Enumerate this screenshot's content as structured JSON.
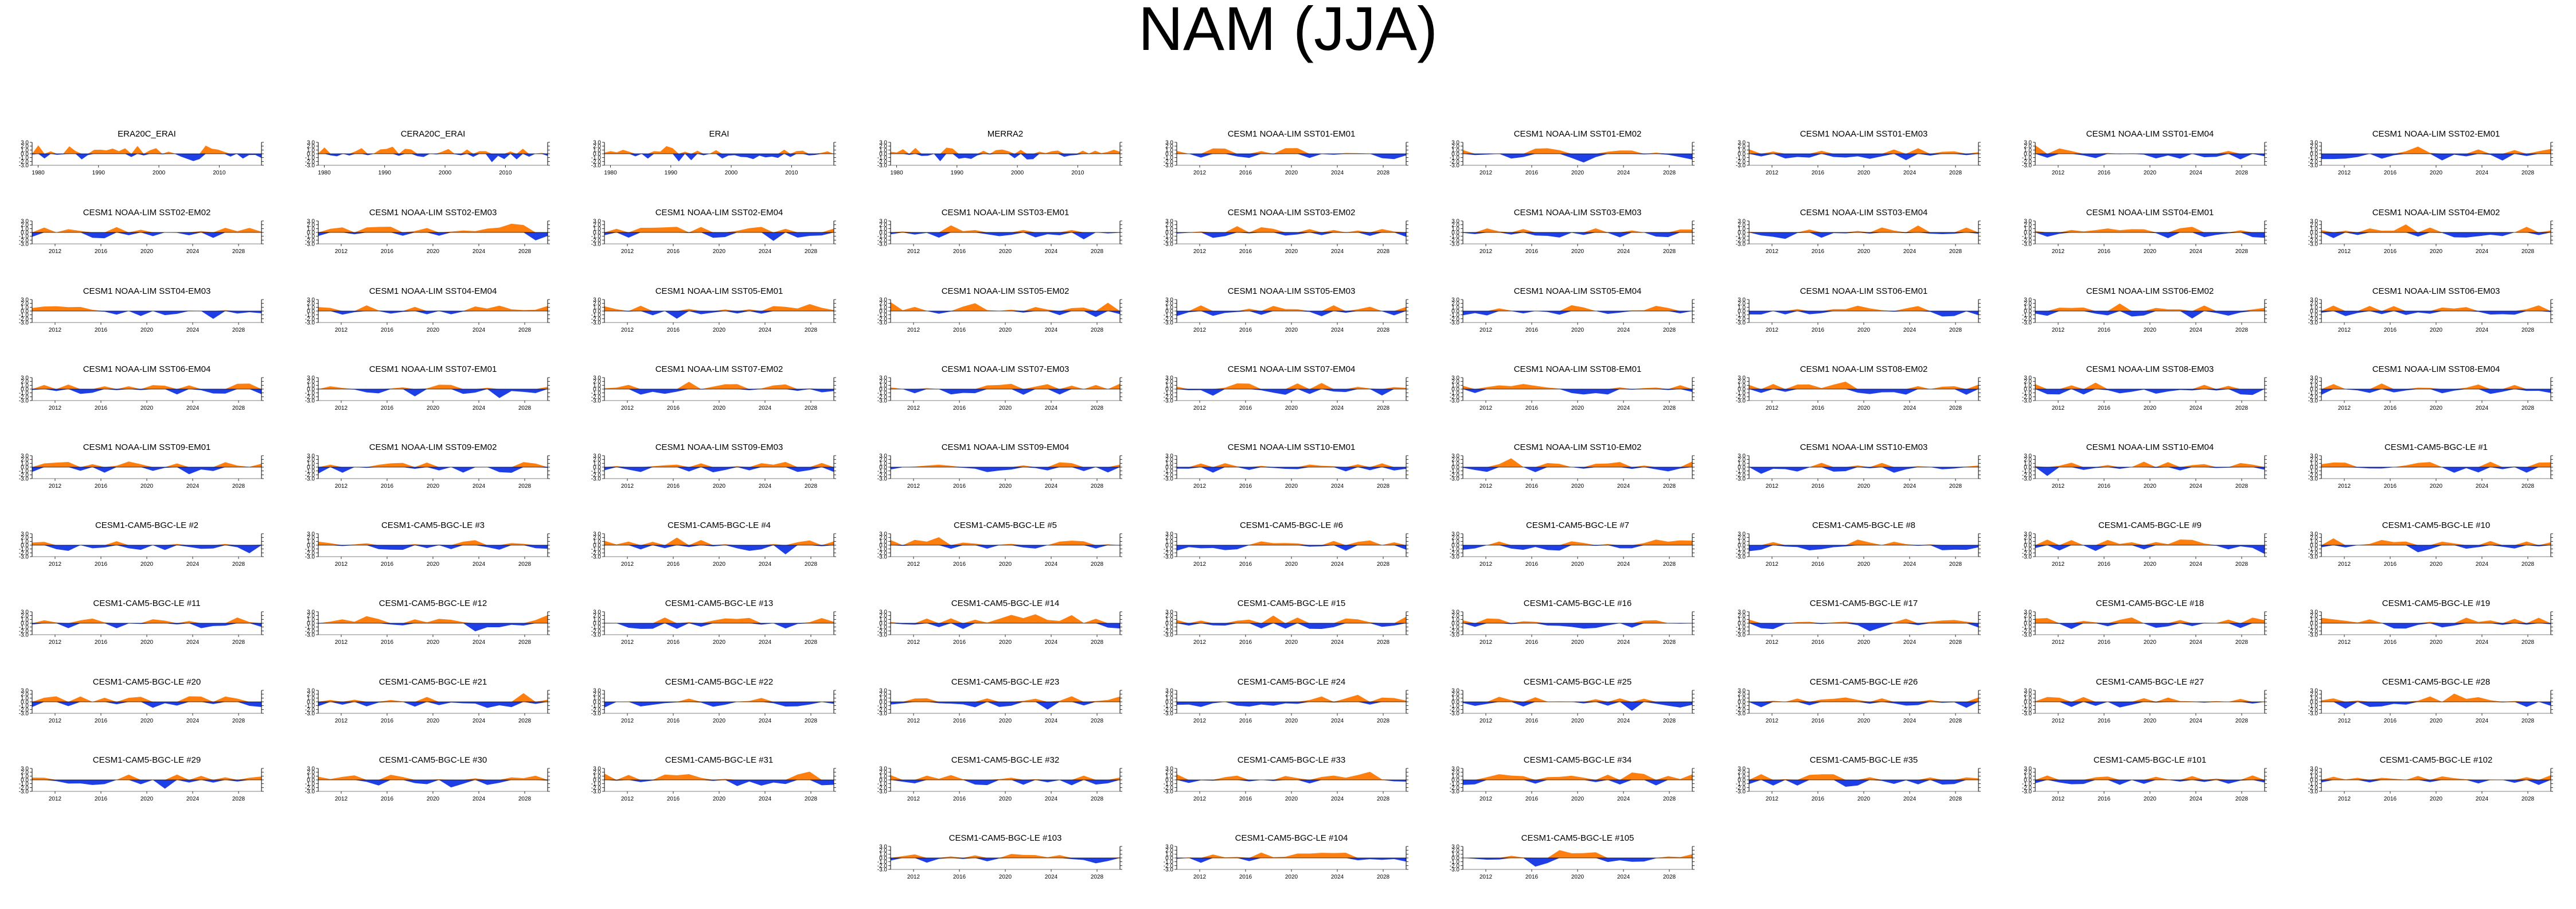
{
  "title": "NAM (JJA)",
  "colors": {
    "positive": "#ff7f0e",
    "negative": "#1f3fe6",
    "axis": "#000000"
  },
  "chart_data": {
    "type": "area",
    "title": "NAM (JJA)",
    "ylim": [
      -3.0,
      3.0
    ],
    "yticks": [
      "3.0",
      "2.0",
      "1.0",
      "0.0",
      "-1.0",
      "-2.0",
      "-3.0"
    ],
    "xticks_obs": [
      "1980",
      "1990",
      "2000",
      "2010"
    ],
    "xticks_model": [
      "2012",
      "2016",
      "2020",
      "2024",
      "2028"
    ],
    "panels": [
      {
        "name": "ERA20C_ERAI",
        "kind": "obs",
        "seed": 1
      },
      {
        "name": "CERA20C_ERAI",
        "kind": "obs",
        "seed": 2
      },
      {
        "name": "ERAI",
        "kind": "obs",
        "seed": 3
      },
      {
        "name": "MERRA2",
        "kind": "obs",
        "seed": 4
      },
      {
        "name": "CESM1 NOAA-LIM SST01-EM01",
        "seed": 5
      },
      {
        "name": "CESM1 NOAA-LIM SST01-EM02",
        "seed": 6
      },
      {
        "name": "CESM1 NOAA-LIM SST01-EM03",
        "seed": 7
      },
      {
        "name": "CESM1 NOAA-LIM SST01-EM04",
        "seed": 8
      },
      {
        "name": "CESM1 NOAA-LIM SST02-EM01",
        "seed": 9
      },
      {
        "name": "CESM1 NOAA-LIM SST02-EM02",
        "seed": 10
      },
      {
        "name": "CESM1 NOAA-LIM SST02-EM03",
        "seed": 11
      },
      {
        "name": "CESM1 NOAA-LIM SST02-EM04",
        "seed": 12
      },
      {
        "name": "CESM1 NOAA-LIM SST03-EM01",
        "seed": 13
      },
      {
        "name": "CESM1 NOAA-LIM SST03-EM02",
        "seed": 14
      },
      {
        "name": "CESM1 NOAA-LIM SST03-EM03",
        "seed": 15
      },
      {
        "name": "CESM1 NOAA-LIM SST03-EM04",
        "seed": 16
      },
      {
        "name": "CESM1 NOAA-LIM SST04-EM01",
        "seed": 17
      },
      {
        "name": "CESM1 NOAA-LIM SST04-EM02",
        "seed": 18
      },
      {
        "name": "CESM1 NOAA-LIM SST04-EM03",
        "seed": 19
      },
      {
        "name": "CESM1 NOAA-LIM SST04-EM04",
        "seed": 20
      },
      {
        "name": "CESM1 NOAA-LIM SST05-EM01",
        "seed": 21
      },
      {
        "name": "CESM1 NOAA-LIM SST05-EM02",
        "seed": 22
      },
      {
        "name": "CESM1 NOAA-LIM SST05-EM03",
        "seed": 23
      },
      {
        "name": "CESM1 NOAA-LIM SST05-EM04",
        "seed": 24
      },
      {
        "name": "CESM1 NOAA-LIM SST06-EM01",
        "seed": 25
      },
      {
        "name": "CESM1 NOAA-LIM SST06-EM02",
        "seed": 26
      },
      {
        "name": "CESM1 NOAA-LIM SST06-EM03",
        "seed": 27
      },
      {
        "name": "CESM1 NOAA-LIM SST06-EM04",
        "seed": 28
      },
      {
        "name": "CESM1 NOAA-LIM SST07-EM01",
        "seed": 29
      },
      {
        "name": "CESM1 NOAA-LIM SST07-EM02",
        "seed": 30
      },
      {
        "name": "CESM1 NOAA-LIM SST07-EM03",
        "seed": 31
      },
      {
        "name": "CESM1 NOAA-LIM SST07-EM04",
        "seed": 32
      },
      {
        "name": "CESM1 NOAA-LIM SST08-EM01",
        "seed": 33
      },
      {
        "name": "CESM1 NOAA-LIM SST08-EM02",
        "seed": 34
      },
      {
        "name": "CESM1 NOAA-LIM SST08-EM03",
        "seed": 35
      },
      {
        "name": "CESM1 NOAA-LIM SST08-EM04",
        "seed": 36
      },
      {
        "name": "CESM1 NOAA-LIM SST09-EM01",
        "seed": 37
      },
      {
        "name": "CESM1 NOAA-LIM SST09-EM02",
        "seed": 38
      },
      {
        "name": "CESM1 NOAA-LIM SST09-EM03",
        "seed": 39
      },
      {
        "name": "CESM1 NOAA-LIM SST09-EM04",
        "seed": 40
      },
      {
        "name": "CESM1 NOAA-LIM SST10-EM01",
        "seed": 41
      },
      {
        "name": "CESM1 NOAA-LIM SST10-EM02",
        "seed": 42
      },
      {
        "name": "CESM1 NOAA-LIM SST10-EM03",
        "seed": 43
      },
      {
        "name": "CESM1 NOAA-LIM SST10-EM04",
        "seed": 44
      },
      {
        "name": "CESM1-CAM5-BGC-LE #1",
        "seed": 45
      },
      {
        "name": "CESM1-CAM5-BGC-LE #2",
        "seed": 46
      },
      {
        "name": "CESM1-CAM5-BGC-LE #3",
        "seed": 47
      },
      {
        "name": "CESM1-CAM5-BGC-LE #4",
        "seed": 48
      },
      {
        "name": "CESM1-CAM5-BGC-LE #5",
        "seed": 49
      },
      {
        "name": "CESM1-CAM5-BGC-LE #6",
        "seed": 50
      },
      {
        "name": "CESM1-CAM5-BGC-LE #7",
        "seed": 51
      },
      {
        "name": "CESM1-CAM5-BGC-LE #8",
        "seed": 52
      },
      {
        "name": "CESM1-CAM5-BGC-LE #9",
        "seed": 53
      },
      {
        "name": "CESM1-CAM5-BGC-LE #10",
        "seed": 54
      },
      {
        "name": "CESM1-CAM5-BGC-LE #11",
        "seed": 55
      },
      {
        "name": "CESM1-CAM5-BGC-LE #12",
        "seed": 56
      },
      {
        "name": "CESM1-CAM5-BGC-LE #13",
        "seed": 57
      },
      {
        "name": "CESM1-CAM5-BGC-LE #14",
        "seed": 58
      },
      {
        "name": "CESM1-CAM5-BGC-LE #15",
        "seed": 59
      },
      {
        "name": "CESM1-CAM5-BGC-LE #16",
        "seed": 60
      },
      {
        "name": "CESM1-CAM5-BGC-LE #17",
        "seed": 61
      },
      {
        "name": "CESM1-CAM5-BGC-LE #18",
        "seed": 62
      },
      {
        "name": "CESM1-CAM5-BGC-LE #19",
        "seed": 63
      },
      {
        "name": "CESM1-CAM5-BGC-LE #20",
        "seed": 64
      },
      {
        "name": "CESM1-CAM5-BGC-LE #21",
        "seed": 65
      },
      {
        "name": "CESM1-CAM5-BGC-LE #22",
        "seed": 66
      },
      {
        "name": "CESM1-CAM5-BGC-LE #23",
        "seed": 67
      },
      {
        "name": "CESM1-CAM5-BGC-LE #24",
        "seed": 68
      },
      {
        "name": "CESM1-CAM5-BGC-LE #25",
        "seed": 69
      },
      {
        "name": "CESM1-CAM5-BGC-LE #26",
        "seed": 70
      },
      {
        "name": "CESM1-CAM5-BGC-LE #27",
        "seed": 71
      },
      {
        "name": "CESM1-CAM5-BGC-LE #28",
        "seed": 72
      },
      {
        "name": "CESM1-CAM5-BGC-LE #29",
        "seed": 73
      },
      {
        "name": "CESM1-CAM5-BGC-LE #30",
        "seed": 74
      },
      {
        "name": "CESM1-CAM5-BGC-LE #31",
        "seed": 75
      },
      {
        "name": "CESM1-CAM5-BGC-LE #32",
        "seed": 76
      },
      {
        "name": "CESM1-CAM5-BGC-LE #33",
        "seed": 77
      },
      {
        "name": "CESM1-CAM5-BGC-LE #34",
        "seed": 78
      },
      {
        "name": "CESM1-CAM5-BGC-LE #35",
        "seed": 79
      },
      {
        "name": "CESM1-CAM5-BGC-LE #101",
        "seed": 80
      },
      {
        "name": "CESM1-CAM5-BGC-LE #102",
        "seed": 81
      },
      {
        "name": "CESM1-CAM5-BGC-LE #103",
        "seed": 82
      },
      {
        "name": "CESM1-CAM5-BGC-LE #104",
        "seed": 83
      },
      {
        "name": "CESM1-CAM5-BGC-LE #105",
        "seed": 84
      }
    ]
  }
}
